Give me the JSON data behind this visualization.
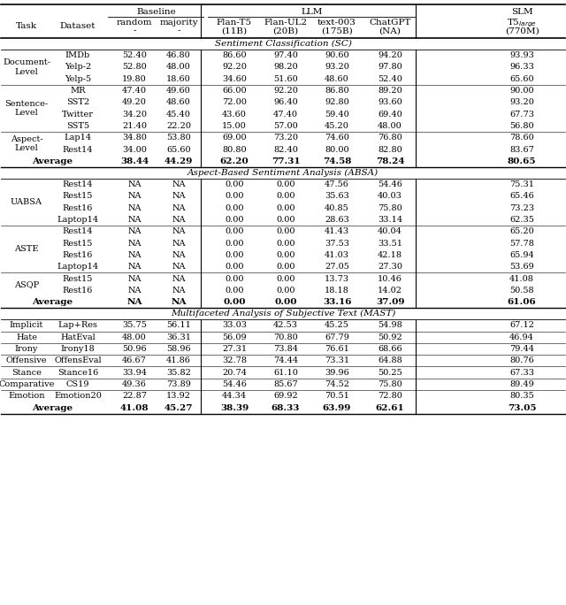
{
  "sections": [
    {
      "title": "Sentiment Classification (SC)",
      "groups": [
        {
          "task": "Document-\nLevel",
          "rows": [
            [
              "IMDb",
              "52.40",
              "46.80",
              "86.60",
              "97.40",
              "90.60",
              "94.20",
              "93.93"
            ],
            [
              "Yelp-2",
              "52.80",
              "48.00",
              "92.20",
              "98.20",
              "93.20",
              "97.80",
              "96.33"
            ],
            [
              "Yelp-5",
              "19.80",
              "18.60",
              "34.60",
              "51.60",
              "48.60",
              "52.40",
              "65.60"
            ]
          ]
        },
        {
          "task": "Sentence-\nLevel",
          "rows": [
            [
              "MR",
              "47.40",
              "49.60",
              "66.00",
              "92.20",
              "86.80",
              "89.20",
              "90.00"
            ],
            [
              "SST2",
              "49.20",
              "48.60",
              "72.00",
              "96.40",
              "92.80",
              "93.60",
              "93.20"
            ],
            [
              "Twitter",
              "34.20",
              "45.40",
              "43.60",
              "47.40",
              "59.40",
              "69.40",
              "67.73"
            ],
            [
              "SST5",
              "21.40",
              "22.20",
              "15.00",
              "57.00",
              "45.20",
              "48.00",
              "56.80"
            ]
          ]
        },
        {
          "task": "Aspect-\nLevel",
          "rows": [
            [
              "Lap14",
              "34.80",
              "53.80",
              "69.00",
              "73.20",
              "74.60",
              "76.80",
              "78.60"
            ],
            [
              "Rest14",
              "34.00",
              "65.60",
              "80.80",
              "82.40",
              "80.00",
              "82.80",
              "83.67"
            ]
          ]
        }
      ],
      "average": [
        "38.44",
        "44.29",
        "62.20",
        "77.31",
        "74.58",
        "78.24",
        "80.65"
      ]
    },
    {
      "title": "Aspect-Based Sentiment Analysis (ABSA)",
      "groups": [
        {
          "task": "UABSA",
          "rows": [
            [
              "Rest14",
              "NA",
              "NA",
              "0.00",
              "0.00",
              "47.56",
              "54.46",
              "75.31"
            ],
            [
              "Rest15",
              "NA",
              "NA",
              "0.00",
              "0.00",
              "35.63",
              "40.03",
              "65.46"
            ],
            [
              "Rest16",
              "NA",
              "NA",
              "0.00",
              "0.00",
              "40.85",
              "75.80",
              "73.23"
            ],
            [
              "Laptop14",
              "NA",
              "NA",
              "0.00",
              "0.00",
              "28.63",
              "33.14",
              "62.35"
            ]
          ]
        },
        {
          "task": "ASTE",
          "rows": [
            [
              "Rest14",
              "NA",
              "NA",
              "0.00",
              "0.00",
              "41.43",
              "40.04",
              "65.20"
            ],
            [
              "Rest15",
              "NA",
              "NA",
              "0.00",
              "0.00",
              "37.53",
              "33.51",
              "57.78"
            ],
            [
              "Rest16",
              "NA",
              "NA",
              "0.00",
              "0.00",
              "41.03",
              "42.18",
              "65.94"
            ],
            [
              "Laptop14",
              "NA",
              "NA",
              "0.00",
              "0.00",
              "27.05",
              "27.30",
              "53.69"
            ]
          ]
        },
        {
          "task": "ASQP",
          "rows": [
            [
              "Rest15",
              "NA",
              "NA",
              "0.00",
              "0.00",
              "13.73",
              "10.46",
              "41.08"
            ],
            [
              "Rest16",
              "NA",
              "NA",
              "0.00",
              "0.00",
              "18.18",
              "14.02",
              "50.58"
            ]
          ]
        }
      ],
      "average": [
        "NA",
        "NA",
        "0.00",
        "0.00",
        "33.16",
        "37.09",
        "61.06"
      ]
    },
    {
      "title": "Multifaceted Analysis of Subjective Text (MAST)",
      "groups": [
        {
          "task": "Implicit",
          "rows": [
            [
              "Lap+Res",
              "35.75",
              "56.11",
              "33.03",
              "42.53",
              "45.25",
              "54.98",
              "67.12"
            ]
          ]
        },
        {
          "task": "Hate",
          "rows": [
            [
              "HatEval",
              "48.00",
              "36.31",
              "56.09",
              "70.80",
              "67.79",
              "50.92",
              "46.94"
            ]
          ]
        },
        {
          "task": "Irony",
          "rows": [
            [
              "Irony18",
              "50.96",
              "58.96",
              "27.31",
              "73.84",
              "76.61",
              "68.66",
              "79.44"
            ]
          ]
        },
        {
          "task": "Offensive",
          "rows": [
            [
              "OffensEval",
              "46.67",
              "41.86",
              "32.78",
              "74.44",
              "73.31",
              "64.88",
              "80.76"
            ]
          ]
        },
        {
          "task": "Stance",
          "rows": [
            [
              "Stance16",
              "33.94",
              "35.82",
              "20.74",
              "61.10",
              "39.96",
              "50.25",
              "67.33"
            ]
          ]
        },
        {
          "task": "Comparative",
          "rows": [
            [
              "CS19",
              "49.36",
              "73.89",
              "54.46",
              "85.67",
              "74.52",
              "75.80",
              "89.49"
            ]
          ]
        },
        {
          "task": "Emotion",
          "rows": [
            [
              "Emotion20",
              "22.87",
              "13.92",
              "44.34",
              "69.92",
              "70.51",
              "72.80",
              "80.35"
            ]
          ]
        }
      ],
      "average": [
        "41.08",
        "45.27",
        "38.39",
        "68.33",
        "63.99",
        "62.61",
        "73.05"
      ]
    }
  ]
}
